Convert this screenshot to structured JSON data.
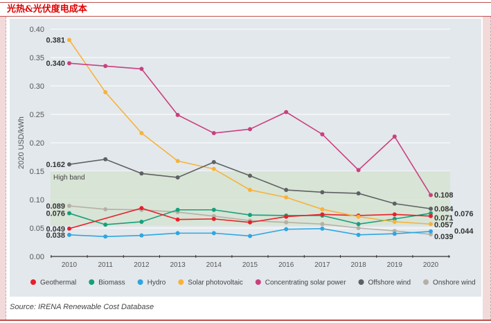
{
  "header": {
    "title": "光热&光伏度电成本"
  },
  "source": "Source: IRENA Renewable Cost Database",
  "chart_data": {
    "type": "line",
    "title": "",
    "xlabel": "",
    "ylabel": "2020 USD/kWh",
    "ylim": [
      0,
      0.4
    ],
    "yticks": [
      "0.00",
      "0.05",
      "0.10",
      "0.15",
      "0.20",
      "0.25",
      "0.30",
      "0.35",
      "0.40"
    ],
    "grid": true,
    "legend_position": "bottom",
    "x": [
      "2010",
      "2011",
      "2012",
      "2013",
      "2014",
      "2015",
      "2016",
      "2017",
      "2018",
      "2019",
      "2020"
    ],
    "band": {
      "label": "High band",
      "range": [
        0.054,
        0.15
      ]
    },
    "series": [
      {
        "name": "Geothermal",
        "color": "#e8202a",
        "values": [
          0.049,
          null,
          0.085,
          0.065,
          0.066,
          0.06,
          0.07,
          0.074,
          0.072,
          0.074,
          0.071
        ],
        "start_label": "0.049",
        "end_label": "0.071"
      },
      {
        "name": "Biomass",
        "color": "#16a07a",
        "values": [
          0.076,
          0.056,
          0.061,
          0.082,
          0.082,
          0.073,
          0.072,
          0.072,
          0.057,
          0.066,
          0.076
        ],
        "start_label": "0.076",
        "end_label": "0.076"
      },
      {
        "name": "Hydro",
        "color": "#2ea6e0",
        "values": [
          0.038,
          0.035,
          0.037,
          0.041,
          0.041,
          0.036,
          0.048,
          0.049,
          0.038,
          0.04,
          0.044
        ],
        "start_label": "0.038",
        "end_label": "0.044"
      },
      {
        "name": "Solar photovoltaic",
        "color": "#f7b23b",
        "values": [
          0.381,
          0.289,
          0.217,
          0.168,
          0.154,
          0.117,
          0.104,
          0.083,
          0.07,
          0.061,
          0.057
        ],
        "start_label": "0.381",
        "end_label": "0.057"
      },
      {
        "name": "Concentrating solar power",
        "color": "#c9407f",
        "values": [
          0.34,
          0.335,
          0.33,
          0.249,
          0.217,
          0.224,
          0.254,
          0.215,
          0.152,
          0.211,
          0.108
        ],
        "start_label": "0.340",
        "end_label": "0.108"
      },
      {
        "name": "Offshore wind",
        "color": "#5e6163",
        "values": [
          0.162,
          0.171,
          0.146,
          0.139,
          0.166,
          0.142,
          0.117,
          0.113,
          0.111,
          0.093,
          0.084
        ],
        "start_label": "0.162",
        "end_label": "0.084"
      },
      {
        "name": "Onshore wind",
        "color": "#b5b0a5",
        "values": [
          0.089,
          0.083,
          0.082,
          0.078,
          0.071,
          0.063,
          0.06,
          0.057,
          0.05,
          0.045,
          0.039
        ],
        "start_label": "0.089",
        "end_label": "0.039"
      }
    ]
  }
}
